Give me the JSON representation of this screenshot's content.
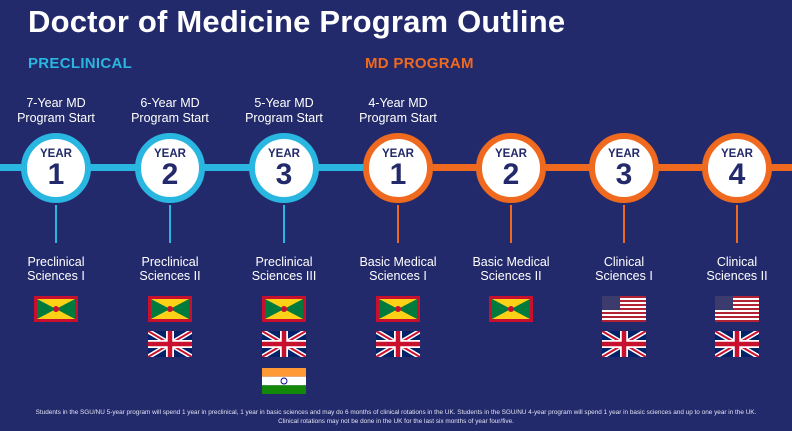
{
  "title": "Doctor of Medicine Program Outline",
  "sections": {
    "preclinical": "PRECLINICAL",
    "md_program": "MD PROGRAM"
  },
  "start_labels": [
    "7-Year MD\nProgram Start",
    "6-Year MD\nProgram Start",
    "5-Year MD\nProgram Start",
    "4-Year MD\nProgram Start"
  ],
  "nodes": [
    {
      "word": "YEAR",
      "num": "1",
      "phase": "preclinical",
      "course": "Preclinical\nSciences I",
      "flags": [
        "grenada"
      ]
    },
    {
      "word": "YEAR",
      "num": "2",
      "phase": "preclinical",
      "course": "Preclinical\nSciences II",
      "flags": [
        "grenada",
        "uk"
      ]
    },
    {
      "word": "YEAR",
      "num": "3",
      "phase": "preclinical",
      "course": "Preclinical\nSciences III",
      "flags": [
        "grenada",
        "uk",
        "india"
      ]
    },
    {
      "word": "YEAR",
      "num": "1",
      "phase": "md",
      "course": "Basic Medical\nSciences I",
      "flags": [
        "grenada",
        "uk"
      ]
    },
    {
      "word": "YEAR",
      "num": "2",
      "phase": "md",
      "course": "Basic Medical\nSciences II",
      "flags": [
        "grenada"
      ]
    },
    {
      "word": "YEAR",
      "num": "3",
      "phase": "md",
      "course": "Clinical\nSciences I",
      "flags": [
        "usa",
        "uk"
      ]
    },
    {
      "word": "YEAR",
      "num": "4",
      "phase": "md",
      "course": "Clinical\nSciences II",
      "flags": [
        "usa",
        "uk"
      ]
    }
  ],
  "colors": {
    "background": "#232a6b",
    "preclinical": "#29b6e0",
    "md": "#ef6a1f"
  },
  "footnote": "Students in the SGU/NU 5-year program will spend 1 year in preclinical, 1 year in basic sciences and may do 6 months of clinical rotations in the UK. Students in the SGU/NU 4-year program will spend 1 year in basic sciences and up to one year in the UK. Clinical rotations may not be done in the UK for the last six months of year four/five."
}
